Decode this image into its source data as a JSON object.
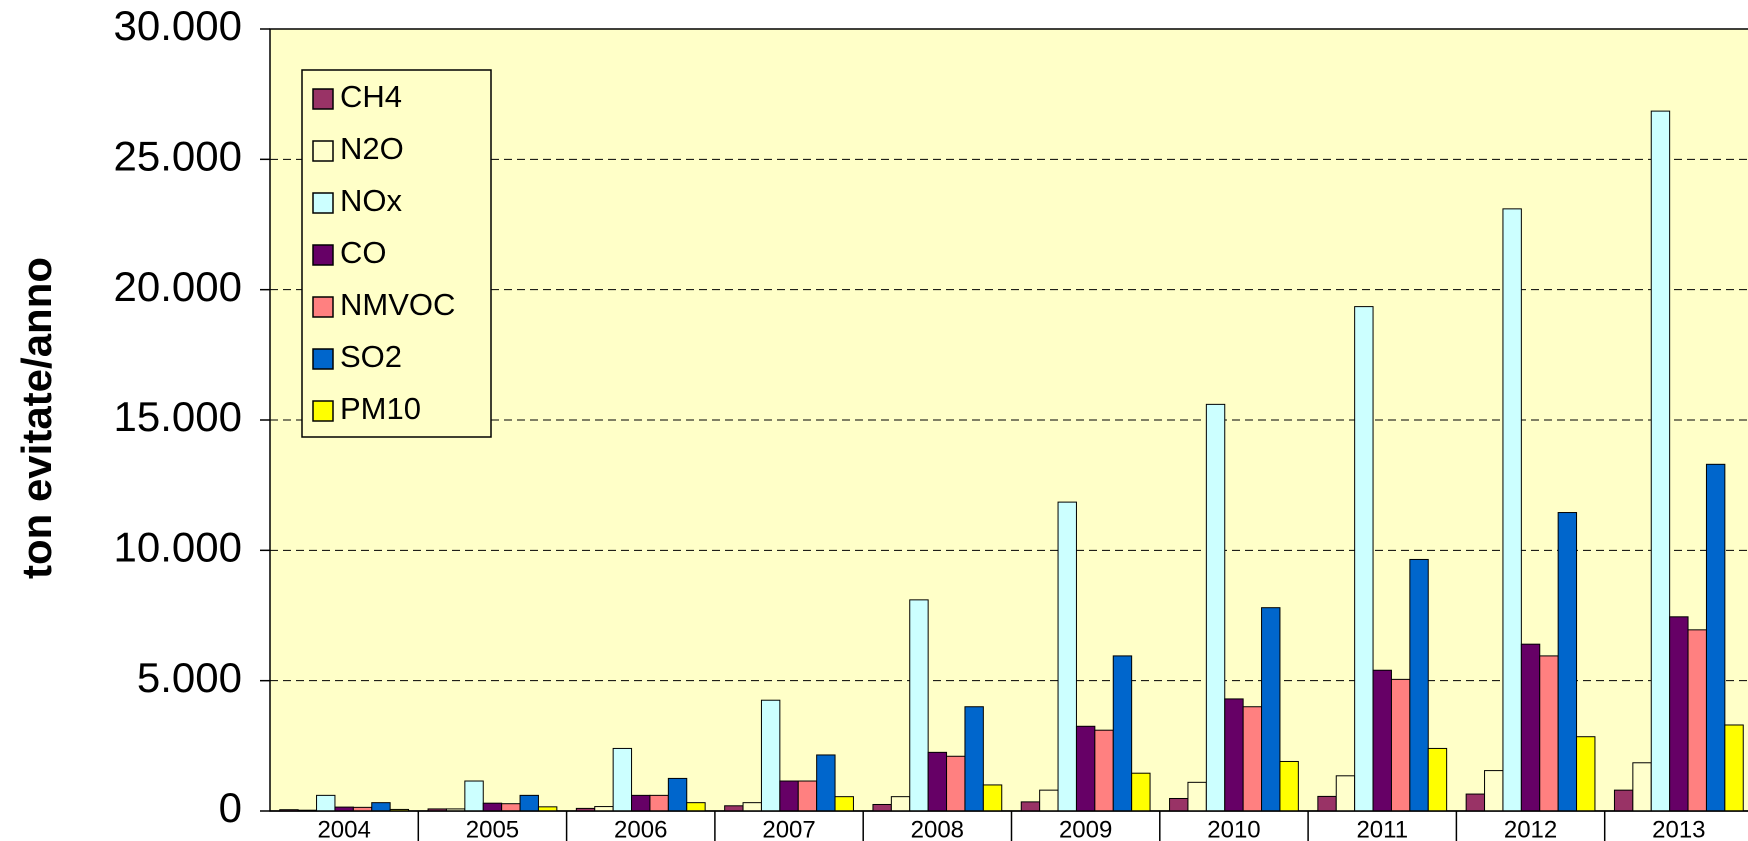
{
  "chart_data": {
    "type": "bar",
    "y_label": "ton evitate/anno",
    "categories": [
      "2004",
      "2005",
      "2006",
      "2007",
      "2008",
      "2009",
      "2010",
      "2011",
      "2012",
      "2013"
    ],
    "series": [
      {
        "name": "CH4",
        "color": "#993366",
        "values": [
          50,
          80,
          100,
          200,
          250,
          350,
          480,
          560,
          650,
          800
        ]
      },
      {
        "name": "N2O",
        "color": "#ffffcc",
        "values": [
          30,
          80,
          170,
          320,
          550,
          800,
          1100,
          1350,
          1550,
          1850
        ]
      },
      {
        "name": "NOx",
        "color": "#ccffff",
        "values": [
          600,
          1150,
          2400,
          4250,
          8100,
          11850,
          15600,
          19350,
          23100,
          26850
        ]
      },
      {
        "name": "CO",
        "color": "#660066",
        "values": [
          150,
          300,
          600,
          1150,
          2250,
          3250,
          4300,
          5400,
          6400,
          7450
        ]
      },
      {
        "name": "NMVOC",
        "color": "#ff8080",
        "values": [
          140,
          280,
          600,
          1150,
          2100,
          3100,
          4000,
          5050,
          5950,
          6950
        ]
      },
      {
        "name": "SO2",
        "color": "#0066cc",
        "values": [
          320,
          600,
          1250,
          2150,
          4000,
          5950,
          7800,
          9650,
          11450,
          13300
        ]
      },
      {
        "name": "PM10",
        "color": "#ffff00",
        "values": [
          60,
          160,
          320,
          550,
          1000,
          1450,
          1900,
          2400,
          2850,
          3300
        ]
      }
    ],
    "ylim": [
      0,
      30000
    ],
    "yticks": [
      0,
      {
        "value": 5000,
        "label": "5.000"
      },
      {
        "value": 10000,
        "label": "10.000"
      },
      {
        "value": 15000,
        "label": "15.000"
      },
      {
        "value": 20000,
        "label": "20.000"
      },
      {
        "value": 25000,
        "label": "25.000"
      },
      {
        "value": 30000,
        "label": "30.000"
      }
    ],
    "grid": true,
    "legend": "upper left",
    "plot_background": "#ffffc8"
  }
}
